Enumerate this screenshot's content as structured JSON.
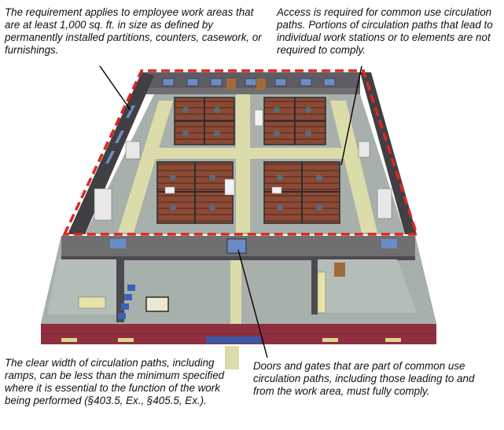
{
  "annotations": {
    "top_left": "The requirement applies to employee work areas that are at least 1,000 sq. ft. in size as defined by permanently installed partitions, counters, casework, or furnishings.",
    "top_right": "Access is required for common use circulation paths.  Portions of circulation paths that lead to individual work stations or to elements are not required to comply.",
    "bottom_left": "The clear width of circulation paths, including ramps, can be less than the minimum specified where it is essential to the function of the work being performed (§403.5, Ex., §405.5, Ex.).",
    "bottom_right": "Doors and gates that are part of common use circulation paths, including those leading to and from the work area, must fully comply."
  },
  "colors": {
    "floor": "#a7b0ab",
    "circulation_path": "#dcdcaa",
    "wall_top": "#6f6f72",
    "wall_side": "#3f3f44",
    "brick_exterior": "#8e3040",
    "desk_wood": "#8a4a36",
    "work_area_boundary": "#e0261f",
    "leader_line": "#000000"
  },
  "icons": {
    "window": "window-icon",
    "door": "door-icon",
    "chair": "chair-icon",
    "cabinet": "cabinet-icon"
  }
}
